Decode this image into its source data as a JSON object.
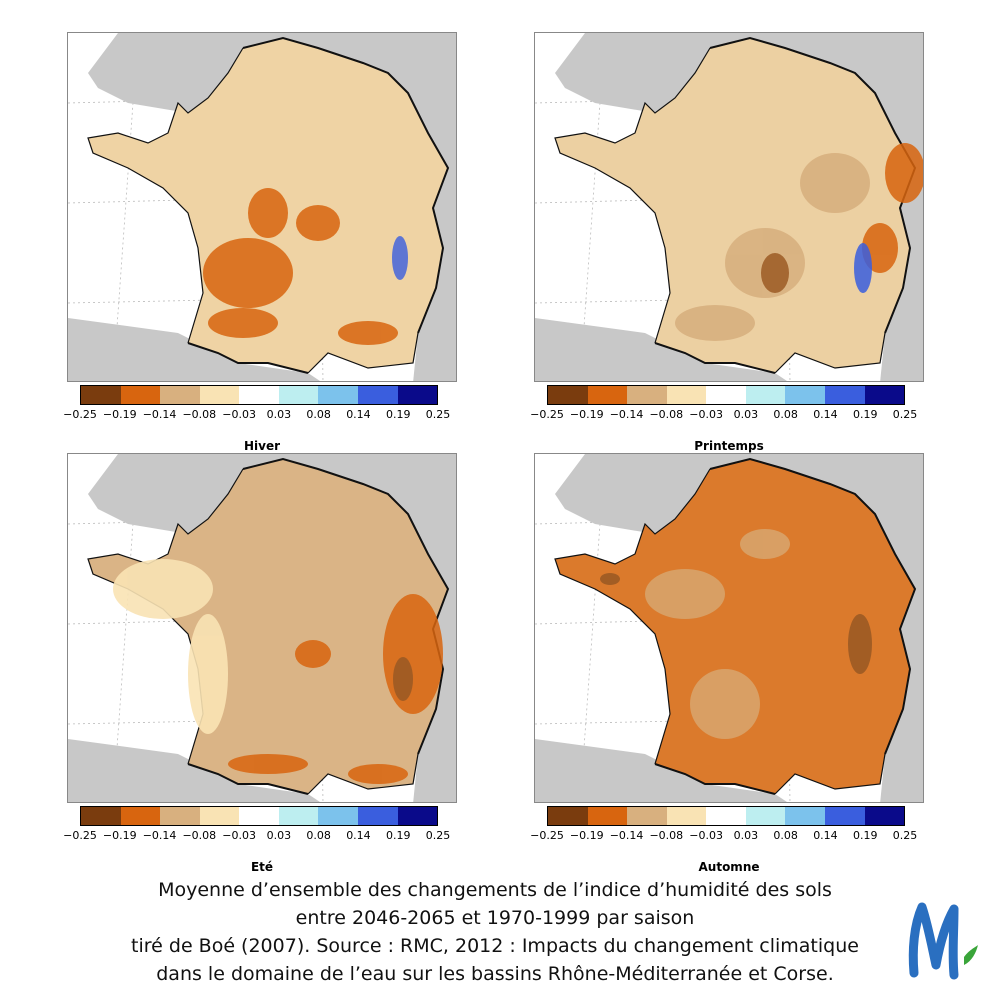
{
  "colorbar": {
    "colors": [
      "#7a3c0e",
      "#d8650f",
      "#d8b07f",
      "#f9e3b4",
      "#ffffff",
      "#bdeef0",
      "#7cc2ec",
      "#3a5ede",
      "#0a0a8a"
    ],
    "ticks": [
      "−0.25",
      "−0.19",
      "−0.14",
      "−0.08",
      "−0.03",
      "0.03",
      "0.08",
      "0.14",
      "0.19",
      "0.25"
    ]
  },
  "panels": [
    {
      "title": "Hiver",
      "base_color": "#efd3a4"
    },
    {
      "title": "Printemps",
      "base_color": "#ecd0a2"
    },
    {
      "title": "Eté",
      "base_color": "#dab486"
    },
    {
      "title": "Automne",
      "base_color": "#db7a2c"
    }
  ],
  "caption": {
    "line1": "Moyenne d’ensemble des changements de l’indice d’humidité des sols",
    "line2": "entre 2046-2065 et 1970-1999 par saison",
    "line3": "tiré de Boé (2007). Source : RMC, 2012 : Impacts du changement climatique",
    "line4": "dans le domaine de l’eau sur les bassins Rhône-Méditerranée et Corse."
  },
  "colors": {
    "neighbor_land": "#c8c8c8",
    "sea": "#ffffff",
    "logo_blue": "#2a6fc0",
    "logo_green": "#3aa53a"
  }
}
